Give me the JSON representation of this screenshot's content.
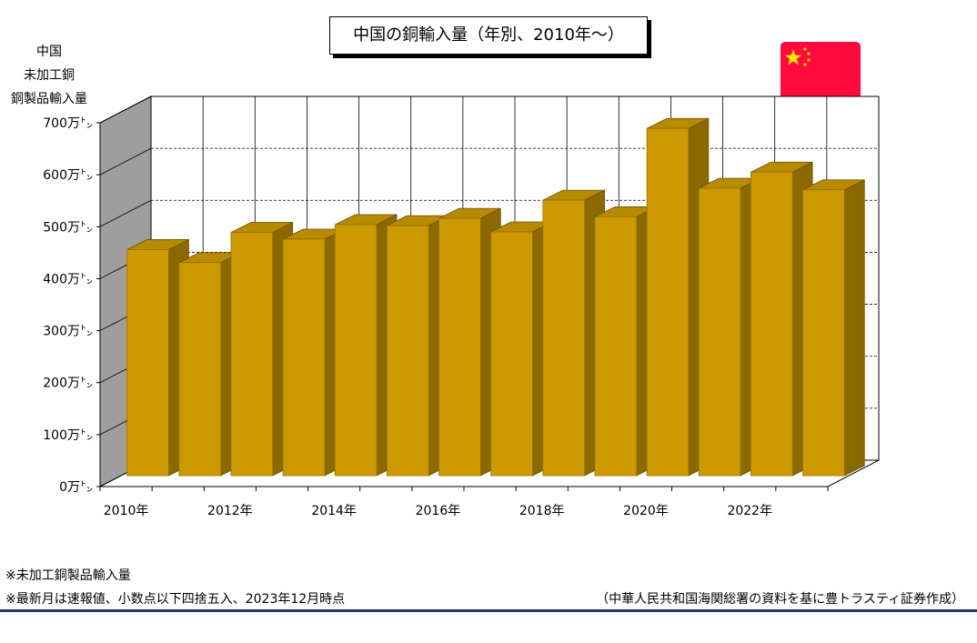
{
  "title": "中国の銅輸入量（年別、2010年～）",
  "yaxis_title": [
    "中国",
    "未加工銅",
    "銅製品輸入量"
  ],
  "notes": [
    "※未加工銅製品輸入量",
    "※最新月は速報値、小数点以下四捨五入、2023年12月時点"
  ],
  "source": "（中華人民共和国海関総署の資料を基に豊トラスティ証券作成）",
  "flag_icon": "china-flag-icon",
  "colors": {
    "bar_front": "#CC9A00",
    "bar_side": "#8A6A00",
    "bar_top": "#B88A00",
    "wall_left": "#9E9E9E",
    "flag_red": "#FF0A3C",
    "flag_star": "#FFE600",
    "rule": "#1f3864"
  },
  "chart_data": {
    "type": "bar",
    "categories": [
      "2010年",
      "2011年",
      "2012年",
      "2013年",
      "2014年",
      "2015年",
      "2016年",
      "2017年",
      "2018年",
      "2019年",
      "2020年",
      "2021年",
      "2022年",
      "2023年"
    ],
    "x_tick_labels": [
      "2010年",
      "",
      "2012年",
      "",
      "2014年",
      "",
      "2016年",
      "",
      "2018年",
      "",
      "2020年",
      "",
      "2022年",
      ""
    ],
    "values": [
      4350000,
      4100000,
      4680000,
      4550000,
      4830000,
      4810000,
      4950000,
      4690000,
      5300000,
      4980000,
      6680000,
      5530000,
      5840000,
      5500000
    ],
    "y_tick_labels": [
      "0万㌧",
      "100万㌧",
      "200万㌧",
      "300万㌧",
      "400万㌧",
      "500万㌧",
      "600万㌧",
      "700万㌧"
    ],
    "ylim": [
      0,
      7000000
    ],
    "style": "3d-bar",
    "grid": "dashed-horizontal"
  }
}
